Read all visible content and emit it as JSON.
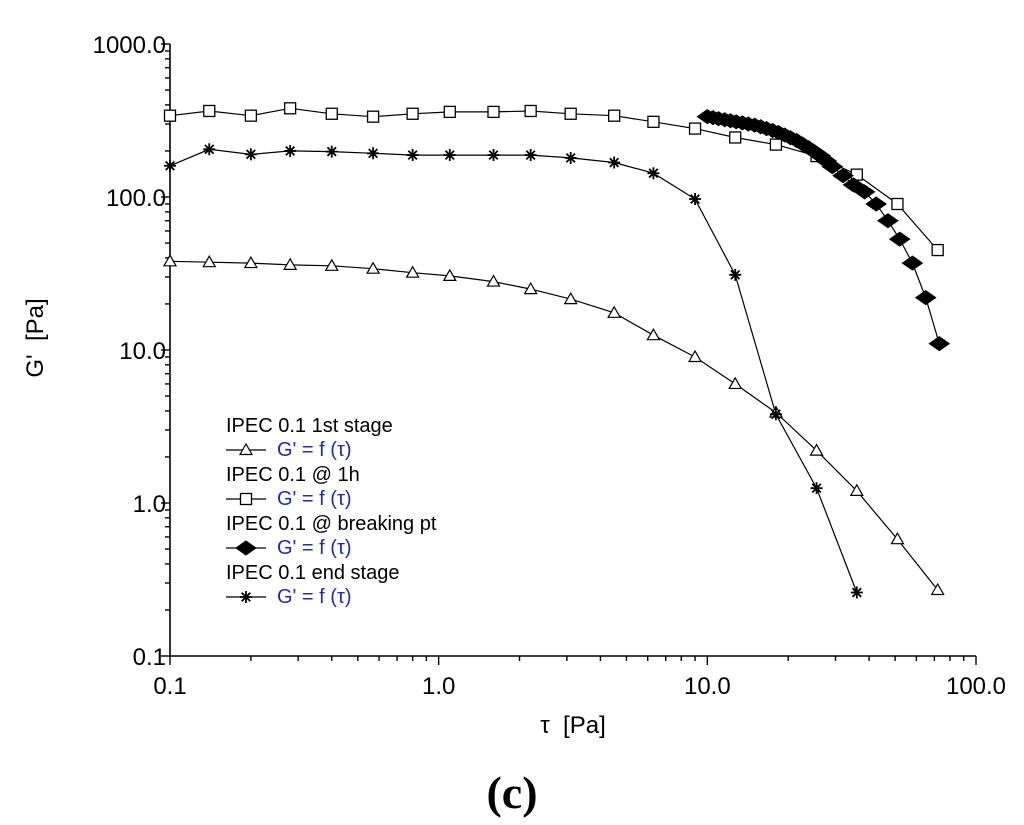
{
  "chart_data": {
    "type": "line",
    "x_scale": "log",
    "y_scale": "log",
    "xlabel": "τ  [Pa]",
    "ylabel": "G'  [Pa]",
    "xlim": [
      0.1,
      100
    ],
    "ylim": [
      0.1,
      1000
    ],
    "x_ticks": [
      {
        "value": 0.1,
        "label": "0.1"
      },
      {
        "value": 1,
        "label": "1.0"
      },
      {
        "value": 10,
        "label": "10.0"
      },
      {
        "value": 100,
        "label": "100.0"
      }
    ],
    "y_ticks": [
      {
        "value": 0.1,
        "label": "0.1"
      },
      {
        "value": 1,
        "label": "1.0"
      },
      {
        "value": 10,
        "label": "10.0"
      },
      {
        "value": 100,
        "label": "100.0"
      },
      {
        "value": 1000,
        "label": "1000.0"
      }
    ],
    "grid": false,
    "legend_position": "bottom-left",
    "panel_label": "(c)",
    "series": [
      {
        "name": "IPEC 0.1 1st stage",
        "fn_label": "G' = f (τ)",
        "marker": "open-triangle",
        "points": [
          [
            0.1,
            38
          ],
          [
            0.14,
            37.5
          ],
          [
            0.2,
            37
          ],
          [
            0.28,
            36
          ],
          [
            0.4,
            35.5
          ],
          [
            0.57,
            34
          ],
          [
            0.8,
            32
          ],
          [
            1.1,
            30.5
          ],
          [
            1.6,
            28
          ],
          [
            2.2,
            25
          ],
          [
            3.1,
            21.5
          ],
          [
            4.5,
            17.5
          ],
          [
            6.3,
            12.5
          ],
          [
            9,
            9
          ],
          [
            12.7,
            6
          ],
          [
            18,
            3.9
          ],
          [
            25.5,
            2.2
          ],
          [
            36,
            1.2
          ],
          [
            51,
            0.58
          ],
          [
            72,
            0.27
          ]
        ]
      },
      {
        "name": "IPEC 0.1 @ 1h",
        "fn_label": "G' = f (τ)",
        "marker": "open-square",
        "points": [
          [
            0.1,
            340
          ],
          [
            0.14,
            365
          ],
          [
            0.2,
            340
          ],
          [
            0.28,
            380
          ],
          [
            0.4,
            350
          ],
          [
            0.57,
            335
          ],
          [
            0.8,
            350
          ],
          [
            1.1,
            360
          ],
          [
            1.6,
            360
          ],
          [
            2.2,
            365
          ],
          [
            3.1,
            350
          ],
          [
            4.5,
            340
          ],
          [
            6.3,
            310
          ],
          [
            9,
            280
          ],
          [
            12.7,
            245
          ],
          [
            18,
            220
          ],
          [
            25.5,
            185
          ],
          [
            36,
            140
          ],
          [
            51,
            90
          ],
          [
            72,
            45
          ]
        ]
      },
      {
        "name": "IPEC 0.1 @ breaking pt",
        "fn_label": "G' = f (τ)",
        "marker": "filled-diamond",
        "points": [
          [
            10,
            335
          ],
          [
            10.5,
            330
          ],
          [
            11,
            325
          ],
          [
            11.6,
            320
          ],
          [
            12.2,
            315
          ],
          [
            12.8,
            310
          ],
          [
            13.5,
            305
          ],
          [
            14.2,
            300
          ],
          [
            15,
            295
          ],
          [
            15.8,
            288
          ],
          [
            16.6,
            280
          ],
          [
            17.5,
            272
          ],
          [
            18.4,
            264
          ],
          [
            19.4,
            254
          ],
          [
            20.4,
            244
          ],
          [
            21.5,
            234
          ],
          [
            22.6,
            222
          ],
          [
            23.8,
            210
          ],
          [
            25,
            198
          ],
          [
            26.3,
            186
          ],
          [
            27.7,
            172
          ],
          [
            29.2,
            158
          ],
          [
            32,
            138
          ],
          [
            35,
            120
          ],
          [
            38.5,
            108
          ],
          [
            42.5,
            90
          ],
          [
            47,
            70
          ],
          [
            52,
            53
          ],
          [
            58,
            37
          ],
          [
            65,
            22
          ],
          [
            73,
            11
          ]
        ]
      },
      {
        "name": "IPEC 0.1 end stage",
        "fn_label": "G' = f (τ)",
        "marker": "asterisk",
        "points": [
          [
            0.1,
            160
          ],
          [
            0.14,
            205
          ],
          [
            0.2,
            190
          ],
          [
            0.28,
            200
          ],
          [
            0.4,
            198
          ],
          [
            0.57,
            193
          ],
          [
            0.8,
            188
          ],
          [
            1.1,
            188
          ],
          [
            1.6,
            188
          ],
          [
            2.2,
            188
          ],
          [
            3.1,
            180
          ],
          [
            4.5,
            168
          ],
          [
            6.3,
            143
          ],
          [
            9,
            97
          ],
          [
            12.7,
            31
          ],
          [
            18,
            3.8
          ],
          [
            25.5,
            1.25
          ],
          [
            36,
            0.26
          ]
        ]
      }
    ]
  },
  "colors": {
    "axis": "#000000",
    "legend_function_text": "#1f2ea6"
  }
}
